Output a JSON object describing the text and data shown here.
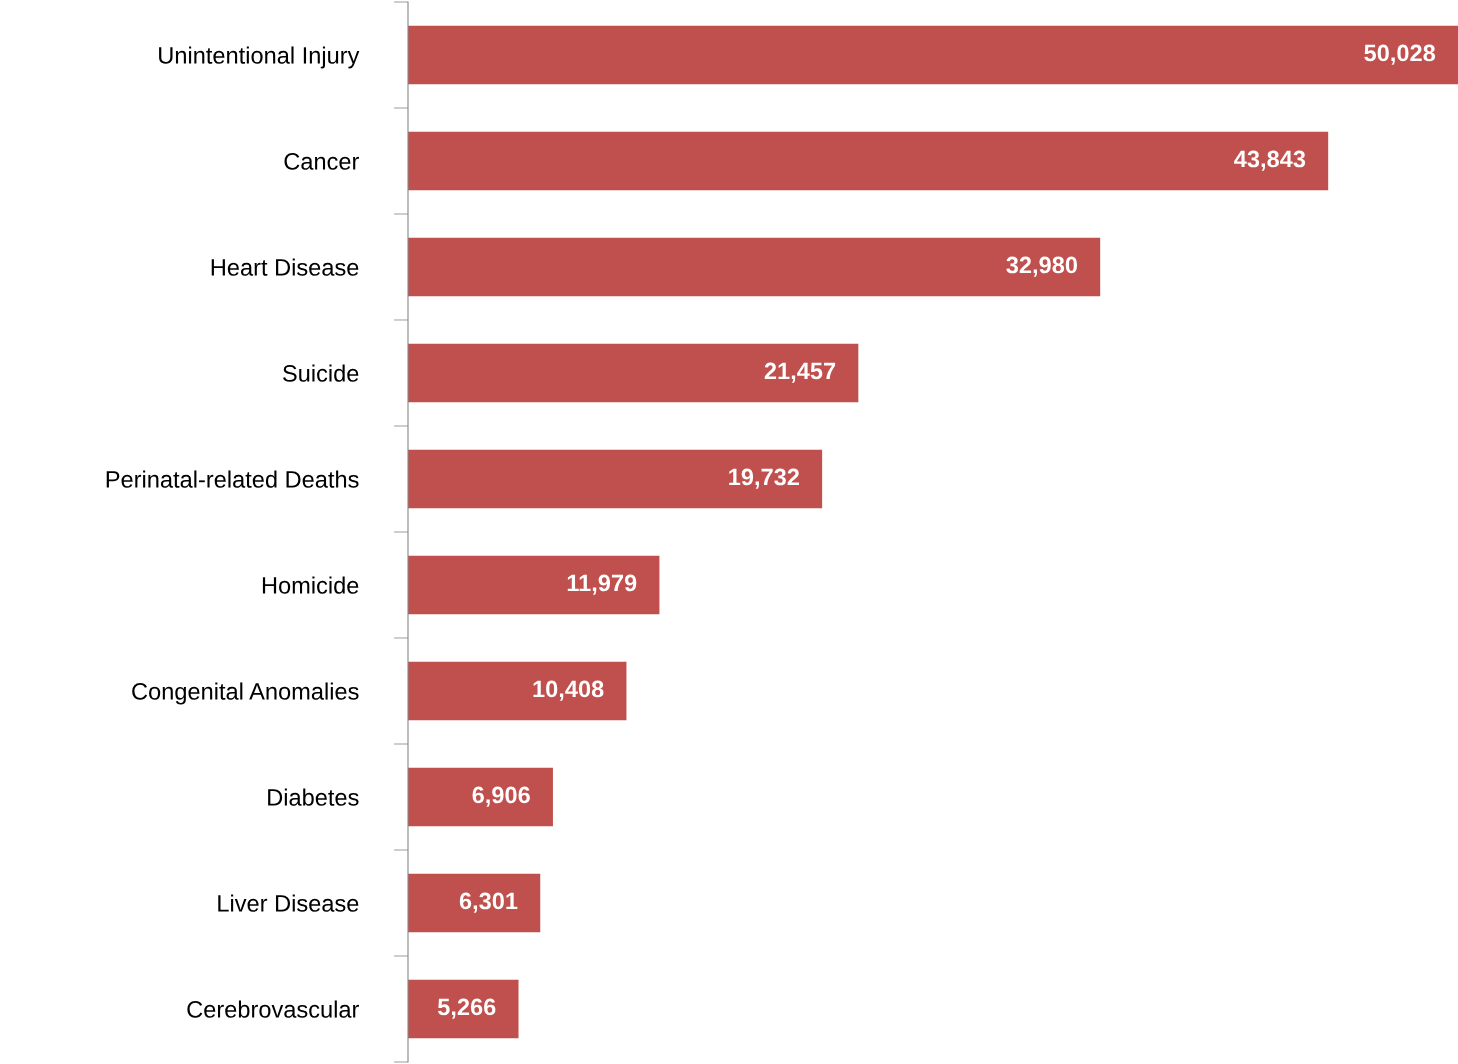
{
  "chart_data": {
    "type": "bar",
    "orientation": "horizontal",
    "categories": [
      "Unintentional Injury",
      "Cancer",
      "Heart Disease",
      "Suicide",
      "Perinatal-related Deaths",
      "Homicide",
      "Congenital Anomalies",
      "Diabetes",
      "Liver Disease",
      "Cerebrovascular"
    ],
    "values": [
      50028,
      43843,
      32980,
      21457,
      19732,
      11979,
      10408,
      6906,
      6301,
      5266
    ],
    "value_labels": [
      "50,028",
      "43,843",
      "32,980",
      "21,457",
      "19,732",
      "11,979",
      "10,408",
      "6,906",
      "6,301",
      "5,266"
    ],
    "color": "#c0504d",
    "grid": false,
    "legend": false
  }
}
